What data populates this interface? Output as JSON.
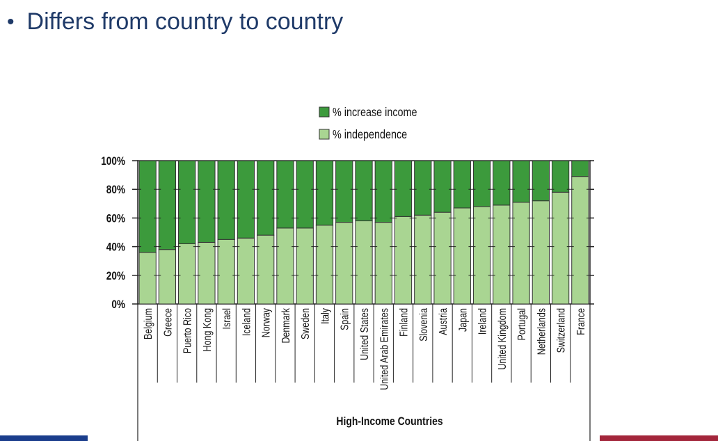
{
  "slide": {
    "bullet_text": "Differs from country to country",
    "bullet_color": "#1f3a68",
    "accent_left_color": "#1a3d8c",
    "accent_right_color": "#a3263b"
  },
  "chart_data": {
    "type": "bar",
    "stacked": true,
    "percent": true,
    "categories": [
      "Belgium",
      "Greece",
      "Puerto Rico",
      "Hong Kong",
      "Israel",
      "Iceland",
      "Norway",
      "Denmark",
      "Sweden",
      "Italy",
      "Spain",
      "United States",
      "United Arab Emirates",
      "Finland",
      "Slovenia",
      "Austria",
      "Japan",
      "Ireland",
      "United Kingdom",
      "Portugal",
      "Netherlands",
      "Switzerland",
      "France"
    ],
    "series": [
      {
        "name": "% independence",
        "color": "#a9d592",
        "values": [
          36,
          38,
          42,
          43,
          45,
          46,
          48,
          53,
          53,
          55,
          57,
          58,
          57,
          61,
          62,
          64,
          67,
          68,
          69,
          71,
          72,
          78,
          89
        ]
      },
      {
        "name": "% increase income",
        "color": "#3c9a3c",
        "values": [
          64,
          62,
          58,
          57,
          55,
          54,
          52,
          47,
          47,
          45,
          43,
          42,
          43,
          39,
          38,
          36,
          33,
          32,
          31,
          29,
          28,
          22,
          11
        ]
      }
    ],
    "legend_order": [
      "% increase income",
      "% independence"
    ],
    "legend_position": "top-center",
    "yticks": [
      "100%",
      "80%",
      "60%",
      "40%",
      "20%",
      "0%"
    ],
    "ylim": [
      0,
      100
    ],
    "xlabel": "High-Income Countries",
    "ylabel": ""
  }
}
